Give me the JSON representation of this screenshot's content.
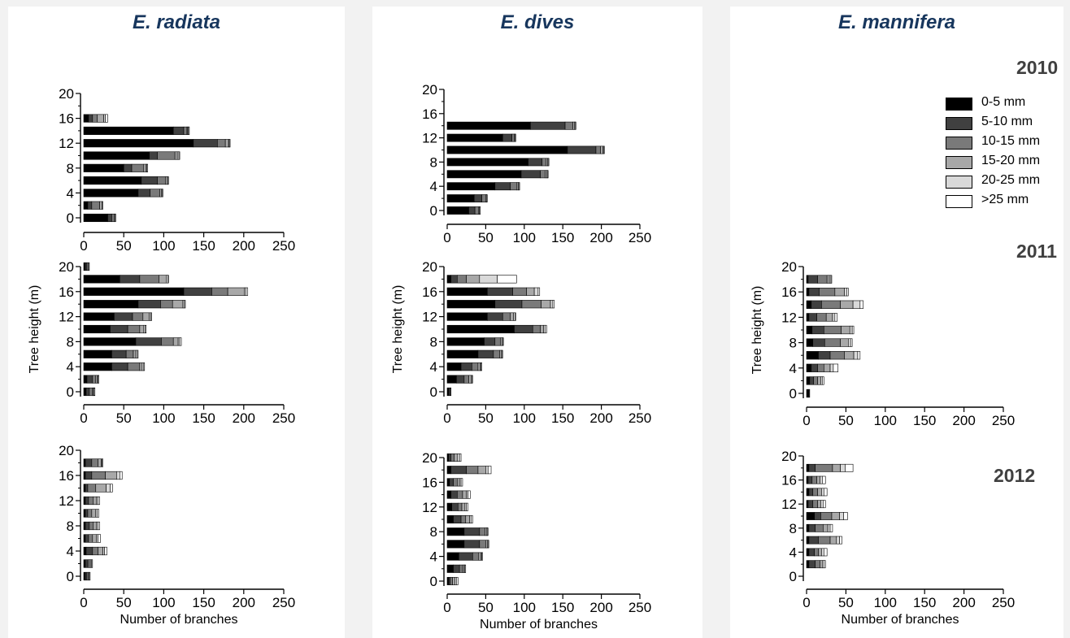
{
  "species": [
    "E. radiata",
    "E. dives",
    "E. mannifera"
  ],
  "years": [
    "2010",
    "2011",
    "2012"
  ],
  "legend": [
    {
      "label": "0-5 mm",
      "color": "#000000"
    },
    {
      "label": "5-10 mm",
      "color": "#404040"
    },
    {
      "label": "10-15 mm",
      "color": "#7a7a7a"
    },
    {
      "label": "15-20 mm",
      "color": "#a8a8a8"
    },
    {
      "label": "20-25 mm",
      "color": "#d9d9d9"
    },
    {
      "label": ">25 mm",
      "color": "#ffffff"
    }
  ],
  "chart_data": [
    {
      "type": "bar",
      "orientation": "horizontal",
      "stacked": true,
      "species": "E. radiata",
      "year": "2010",
      "xlabel": "",
      "ylabel": "",
      "xlim": [
        0,
        250
      ],
      "ylim": [
        0,
        20
      ],
      "xticks": [
        0,
        50,
        100,
        150,
        200,
        250
      ],
      "yticks": [
        0,
        4,
        8,
        12,
        16,
        20
      ],
      "y": [
        0,
        2,
        4,
        6,
        8,
        10,
        12,
        14,
        16
      ],
      "series": [
        {
          "name": "0-5 mm",
          "values": [
            30,
            5,
            68,
            72,
            50,
            82,
            137,
            112,
            6
          ]
        },
        {
          "name": "5-10 mm",
          "values": [
            5,
            5,
            15,
            20,
            10,
            10,
            30,
            13,
            5
          ]
        },
        {
          "name": "10-15 mm",
          "values": [
            3,
            10,
            12,
            10,
            15,
            22,
            10,
            4,
            6
          ]
        },
        {
          "name": "15-20 mm",
          "values": [
            1,
            3,
            2,
            2,
            3,
            3,
            4,
            1,
            8
          ]
        },
        {
          "name": "20-25 mm",
          "values": [
            1,
            1,
            1,
            1,
            1,
            2,
            1,
            1,
            2
          ]
        },
        {
          "name": ">25 mm",
          "values": [
            0,
            0,
            1,
            1,
            1,
            1,
            1,
            1,
            3
          ]
        }
      ]
    },
    {
      "type": "bar",
      "orientation": "horizontal",
      "stacked": true,
      "species": "E. dives",
      "year": "2010",
      "xlabel": "",
      "ylabel": "",
      "xlim": [
        0,
        250
      ],
      "ylim": [
        0,
        20
      ],
      "xticks": [
        0,
        50,
        100,
        150,
        200,
        250
      ],
      "yticks": [
        0,
        4,
        8,
        12,
        16,
        20
      ],
      "y": [
        0,
        2,
        4,
        6,
        8,
        10,
        12,
        14
      ],
      "series": [
        {
          "name": "0-5 mm",
          "values": [
            28,
            35,
            62,
            96,
            105,
            156,
            72,
            108
          ]
        },
        {
          "name": "5-10 mm",
          "values": [
            8,
            10,
            20,
            25,
            18,
            37,
            12,
            45
          ]
        },
        {
          "name": "10-15 mm",
          "values": [
            5,
            5,
            8,
            6,
            5,
            6,
            3,
            10
          ]
        },
        {
          "name": "15-20 mm",
          "values": [
            1,
            1,
            2,
            2,
            2,
            3,
            1,
            2
          ]
        },
        {
          "name": "20-25 mm",
          "values": [
            1,
            1,
            1,
            1,
            1,
            1,
            1,
            1
          ]
        },
        {
          "name": ">25 mm",
          "values": [
            0,
            0,
            1,
            1,
            1,
            1,
            0,
            1
          ]
        }
      ]
    },
    {
      "type": "bar",
      "orientation": "horizontal",
      "stacked": true,
      "species": "E. radiata",
      "year": "2011",
      "xlabel": "",
      "ylabel": "Tree height (m)",
      "xlim": [
        0,
        250
      ],
      "ylim": [
        0,
        20
      ],
      "xticks": [
        0,
        50,
        100,
        150,
        200,
        250
      ],
      "yticks": [
        0,
        4,
        8,
        12,
        16,
        20
      ],
      "y": [
        0,
        2,
        4,
        6,
        8,
        10,
        12,
        14,
        16,
        18,
        20
      ],
      "series": [
        {
          "name": "0-5 mm",
          "values": [
            3,
            4,
            35,
            35,
            65,
            33,
            38,
            68,
            125,
            45,
            2
          ]
        },
        {
          "name": "5-10 mm",
          "values": [
            4,
            7,
            20,
            18,
            32,
            22,
            23,
            28,
            35,
            25,
            2
          ]
        },
        {
          "name": "10-15 mm",
          "values": [
            4,
            4,
            15,
            9,
            15,
            15,
            13,
            15,
            20,
            24,
            2
          ]
        },
        {
          "name": "15-20 mm",
          "values": [
            1,
            2,
            3,
            3,
            6,
            5,
            8,
            13,
            21,
            9,
            1
          ]
        },
        {
          "name": "20-25 mm",
          "values": [
            1,
            1,
            2,
            2,
            2,
            2,
            2,
            2,
            2,
            2,
            0
          ]
        },
        {
          "name": ">25 mm",
          "values": [
            1,
            1,
            1,
            1,
            2,
            1,
            1,
            1,
            2,
            1,
            0
          ]
        }
      ]
    },
    {
      "type": "bar",
      "orientation": "horizontal",
      "stacked": true,
      "species": "E. dives",
      "year": "2011",
      "xlabel": "",
      "ylabel": "Tree height (m)",
      "xlim": [
        0,
        250
      ],
      "ylim": [
        0,
        20
      ],
      "xticks": [
        0,
        50,
        100,
        150,
        200,
        250
      ],
      "yticks": [
        0,
        4,
        8,
        12,
        16,
        20
      ],
      "y": [
        0,
        2,
        4,
        6,
        8,
        10,
        12,
        14,
        16,
        18
      ],
      "series": [
        {
          "name": "0-5 mm",
          "values": [
            2,
            12,
            18,
            40,
            48,
            87,
            52,
            62,
            52,
            5
          ]
        },
        {
          "name": "5-10 mm",
          "values": [
            2,
            10,
            14,
            20,
            14,
            24,
            20,
            35,
            33,
            8
          ]
        },
        {
          "name": "10-15 mm",
          "values": [
            1,
            6,
            8,
            8,
            7,
            10,
            10,
            25,
            18,
            12
          ]
        },
        {
          "name": "15-20 mm",
          "values": [
            0,
            3,
            3,
            2,
            2,
            4,
            4,
            12,
            10,
            17
          ]
        },
        {
          "name": "20-25 mm",
          "values": [
            0,
            1,
            1,
            1,
            1,
            2,
            2,
            3,
            5,
            23
          ]
        },
        {
          "name": ">25 mm",
          "values": [
            0,
            1,
            1,
            1,
            1,
            2,
            1,
            2,
            2,
            25
          ]
        }
      ]
    },
    {
      "type": "bar",
      "orientation": "horizontal",
      "stacked": true,
      "species": "E. mannifera",
      "year": "2011",
      "xlabel": "",
      "ylabel": "Tree height (m)",
      "xlim": [
        0,
        250
      ],
      "ylim": [
        0,
        20
      ],
      "xticks": [
        0,
        50,
        100,
        150,
        200,
        250
      ],
      "yticks": [
        0,
        4,
        8,
        12,
        16,
        20
      ],
      "y": [
        0,
        2,
        4,
        6,
        8,
        10,
        12,
        14,
        16,
        18
      ],
      "series": [
        {
          "name": "0-5 mm",
          "values": [
            3,
            4,
            6,
            15,
            8,
            7,
            3,
            6,
            3,
            2
          ]
        },
        {
          "name": "5-10 mm",
          "values": [
            1,
            5,
            8,
            15,
            15,
            15,
            10,
            13,
            13,
            12
          ]
        },
        {
          "name": "10-15 mm",
          "values": [
            0,
            5,
            8,
            18,
            20,
            22,
            12,
            24,
            20,
            12
          ]
        },
        {
          "name": "15-20 mm",
          "values": [
            0,
            4,
            8,
            12,
            10,
            11,
            8,
            16,
            12,
            3
          ]
        },
        {
          "name": "20-25 mm",
          "values": [
            0,
            2,
            4,
            5,
            3,
            3,
            3,
            9,
            3,
            2
          ]
        },
        {
          "name": ">25 mm",
          "values": [
            0,
            2,
            6,
            3,
            2,
            2,
            3,
            4,
            2,
            1
          ]
        }
      ]
    },
    {
      "type": "bar",
      "orientation": "horizontal",
      "stacked": true,
      "species": "E. radiata",
      "year": "2012",
      "xlabel": "Number of branches",
      "ylabel": "",
      "xlim": [
        0,
        250
      ],
      "ylim": [
        0,
        20
      ],
      "xticks": [
        0,
        50,
        100,
        150,
        200,
        250
      ],
      "yticks": [
        0,
        4,
        8,
        12,
        16,
        20
      ],
      "y": [
        0,
        2,
        4,
        6,
        8,
        10,
        12,
        14,
        16,
        18
      ],
      "series": [
        {
          "name": "0-5 mm",
          "values": [
            2,
            2,
            3,
            2,
            2,
            2,
            2,
            2,
            2,
            2
          ]
        },
        {
          "name": "5-10 mm",
          "values": [
            2,
            3,
            8,
            4,
            5,
            3,
            4,
            3,
            8,
            8
          ]
        },
        {
          "name": "10-15 mm",
          "values": [
            2,
            2,
            7,
            5,
            5,
            5,
            6,
            10,
            17,
            8
          ]
        },
        {
          "name": "15-20 mm",
          "values": [
            1,
            2,
            6,
            5,
            4,
            5,
            4,
            13,
            14,
            4
          ]
        },
        {
          "name": "20-25 mm",
          "values": [
            1,
            1,
            2,
            2,
            2,
            2,
            2,
            5,
            4,
            1
          ]
        },
        {
          "name": ">25 mm",
          "values": [
            0,
            1,
            3,
            3,
            2,
            2,
            2,
            3,
            3,
            1
          ]
        }
      ]
    },
    {
      "type": "bar",
      "orientation": "horizontal",
      "stacked": true,
      "species": "E. dives",
      "year": "2012",
      "xlabel": "Number of branches",
      "ylabel": "",
      "xlim": [
        0,
        250
      ],
      "ylim": [
        0,
        20
      ],
      "xticks": [
        0,
        50,
        100,
        150,
        200,
        250
      ],
      "yticks": [
        0,
        4,
        8,
        12,
        16,
        20
      ],
      "y": [
        0,
        2,
        4,
        6,
        8,
        10,
        12,
        14,
        16,
        18,
        20
      ],
      "series": [
        {
          "name": "0-5 mm",
          "values": [
            2,
            8,
            15,
            22,
            22,
            8,
            6,
            5,
            3,
            5,
            2
          ]
        },
        {
          "name": "5-10 mm",
          "values": [
            2,
            8,
            18,
            20,
            20,
            10,
            8,
            8,
            5,
            20,
            3
          ]
        },
        {
          "name": "10-15 mm",
          "values": [
            3,
            4,
            8,
            8,
            7,
            6,
            5,
            7,
            5,
            15,
            4
          ]
        },
        {
          "name": "15-20 mm",
          "values": [
            3,
            2,
            3,
            2,
            2,
            5,
            4,
            5,
            3,
            10,
            4
          ]
        },
        {
          "name": "20-25 mm",
          "values": [
            2,
            1,
            1,
            1,
            1,
            2,
            2,
            2,
            2,
            3,
            3
          ]
        },
        {
          "name": ">25 mm",
          "values": [
            2,
            1,
            1,
            1,
            1,
            2,
            2,
            3,
            2,
            4,
            2
          ]
        }
      ]
    },
    {
      "type": "bar",
      "orientation": "horizontal",
      "stacked": true,
      "species": "E. mannifera",
      "year": "2012",
      "xlabel": "Number of branches",
      "ylabel": "",
      "xlim": [
        0,
        250
      ],
      "ylim": [
        0,
        20
      ],
      "xticks": [
        0,
        50,
        100,
        150,
        200,
        250
      ],
      "yticks": [
        0,
        4,
        8,
        12,
        16,
        20
      ],
      "y": [
        2,
        4,
        6,
        8,
        10,
        12,
        14,
        16,
        18
      ],
      "series": [
        {
          "name": "0-5 mm",
          "values": [
            3,
            3,
            3,
            3,
            10,
            2,
            3,
            2,
            3
          ]
        },
        {
          "name": "5-10 mm",
          "values": [
            8,
            7,
            12,
            8,
            8,
            6,
            5,
            5,
            8
          ]
        },
        {
          "name": "10-15 mm",
          "values": [
            6,
            5,
            15,
            10,
            14,
            6,
            6,
            6,
            22
          ]
        },
        {
          "name": "15-20 mm",
          "values": [
            3,
            4,
            8,
            6,
            10,
            4,
            5,
            4,
            10
          ]
        },
        {
          "name": "20-25 mm",
          "values": [
            2,
            3,
            4,
            3,
            5,
            3,
            3,
            3,
            6
          ]
        },
        {
          "name": ">25 mm",
          "values": [
            2,
            4,
            3,
            3,
            5,
            3,
            4,
            4,
            10
          ]
        }
      ]
    }
  ]
}
